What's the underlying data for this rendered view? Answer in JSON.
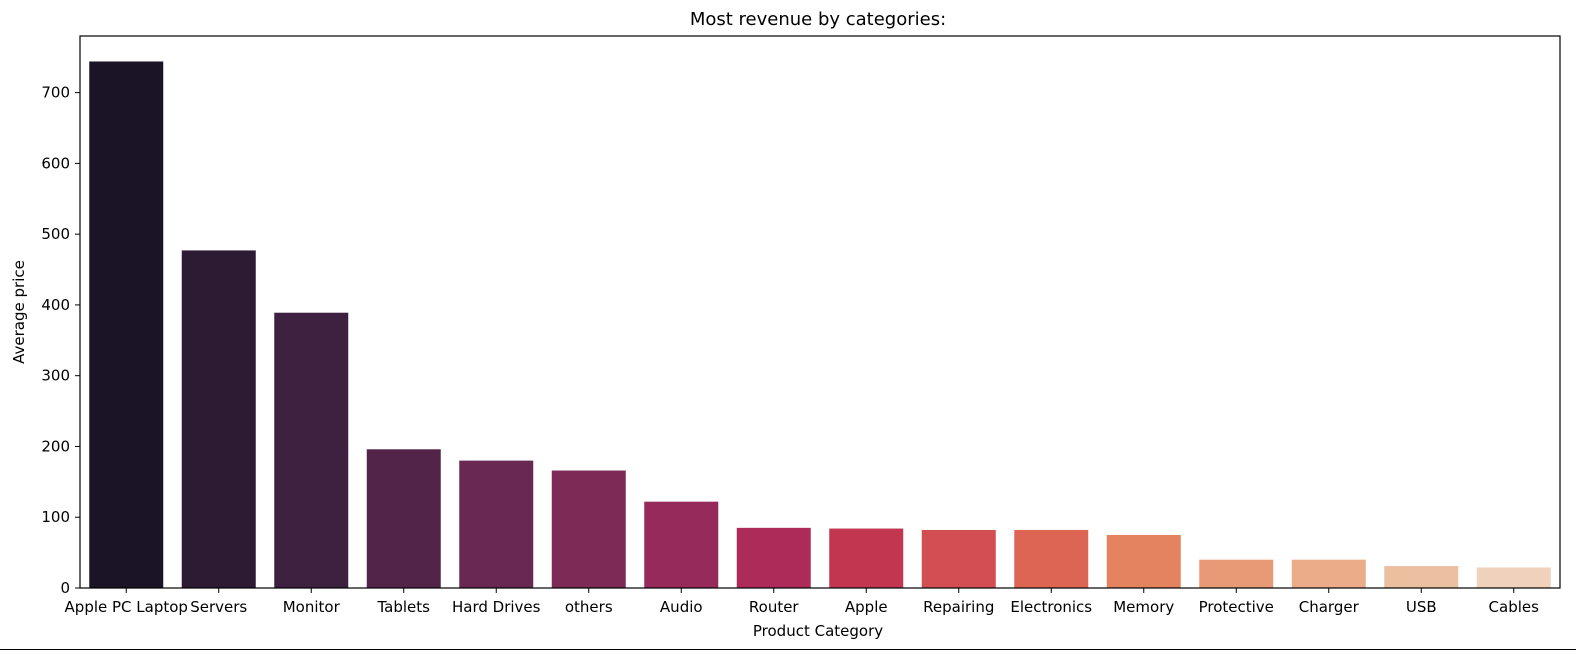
{
  "chart_data": {
    "type": "bar",
    "title": "Most revenue by categories:",
    "xlabel": "Product Category",
    "ylabel": "Average price",
    "ylim": [
      0,
      780
    ],
    "yticks": [
      0,
      100,
      200,
      300,
      400,
      500,
      600,
      700
    ],
    "grid": false,
    "categories": [
      "Apple PC Laptop",
      "Servers",
      "Monitor",
      "Tablets",
      "Hard Drives",
      "others",
      "Audio",
      "Router",
      "Apple",
      "Repairing",
      "Electronics",
      "Memory",
      "Protective",
      "Charger",
      "USB",
      "Cables"
    ],
    "values": [
      744,
      477,
      389,
      196,
      180,
      166,
      122,
      85,
      84,
      82,
      82,
      75,
      40,
      40,
      31,
      29
    ],
    "colors": [
      "#1a1426",
      "#2d1b34",
      "#3e2040",
      "#53244a",
      "#682853",
      "#7e2a57",
      "#962a5a",
      "#ad2b58",
      "#c23650",
      "#d34e53",
      "#dd6553",
      "#e4835f",
      "#e89a76",
      "#ebac89",
      "#edbfa1",
      "#f0d2bc"
    ]
  }
}
